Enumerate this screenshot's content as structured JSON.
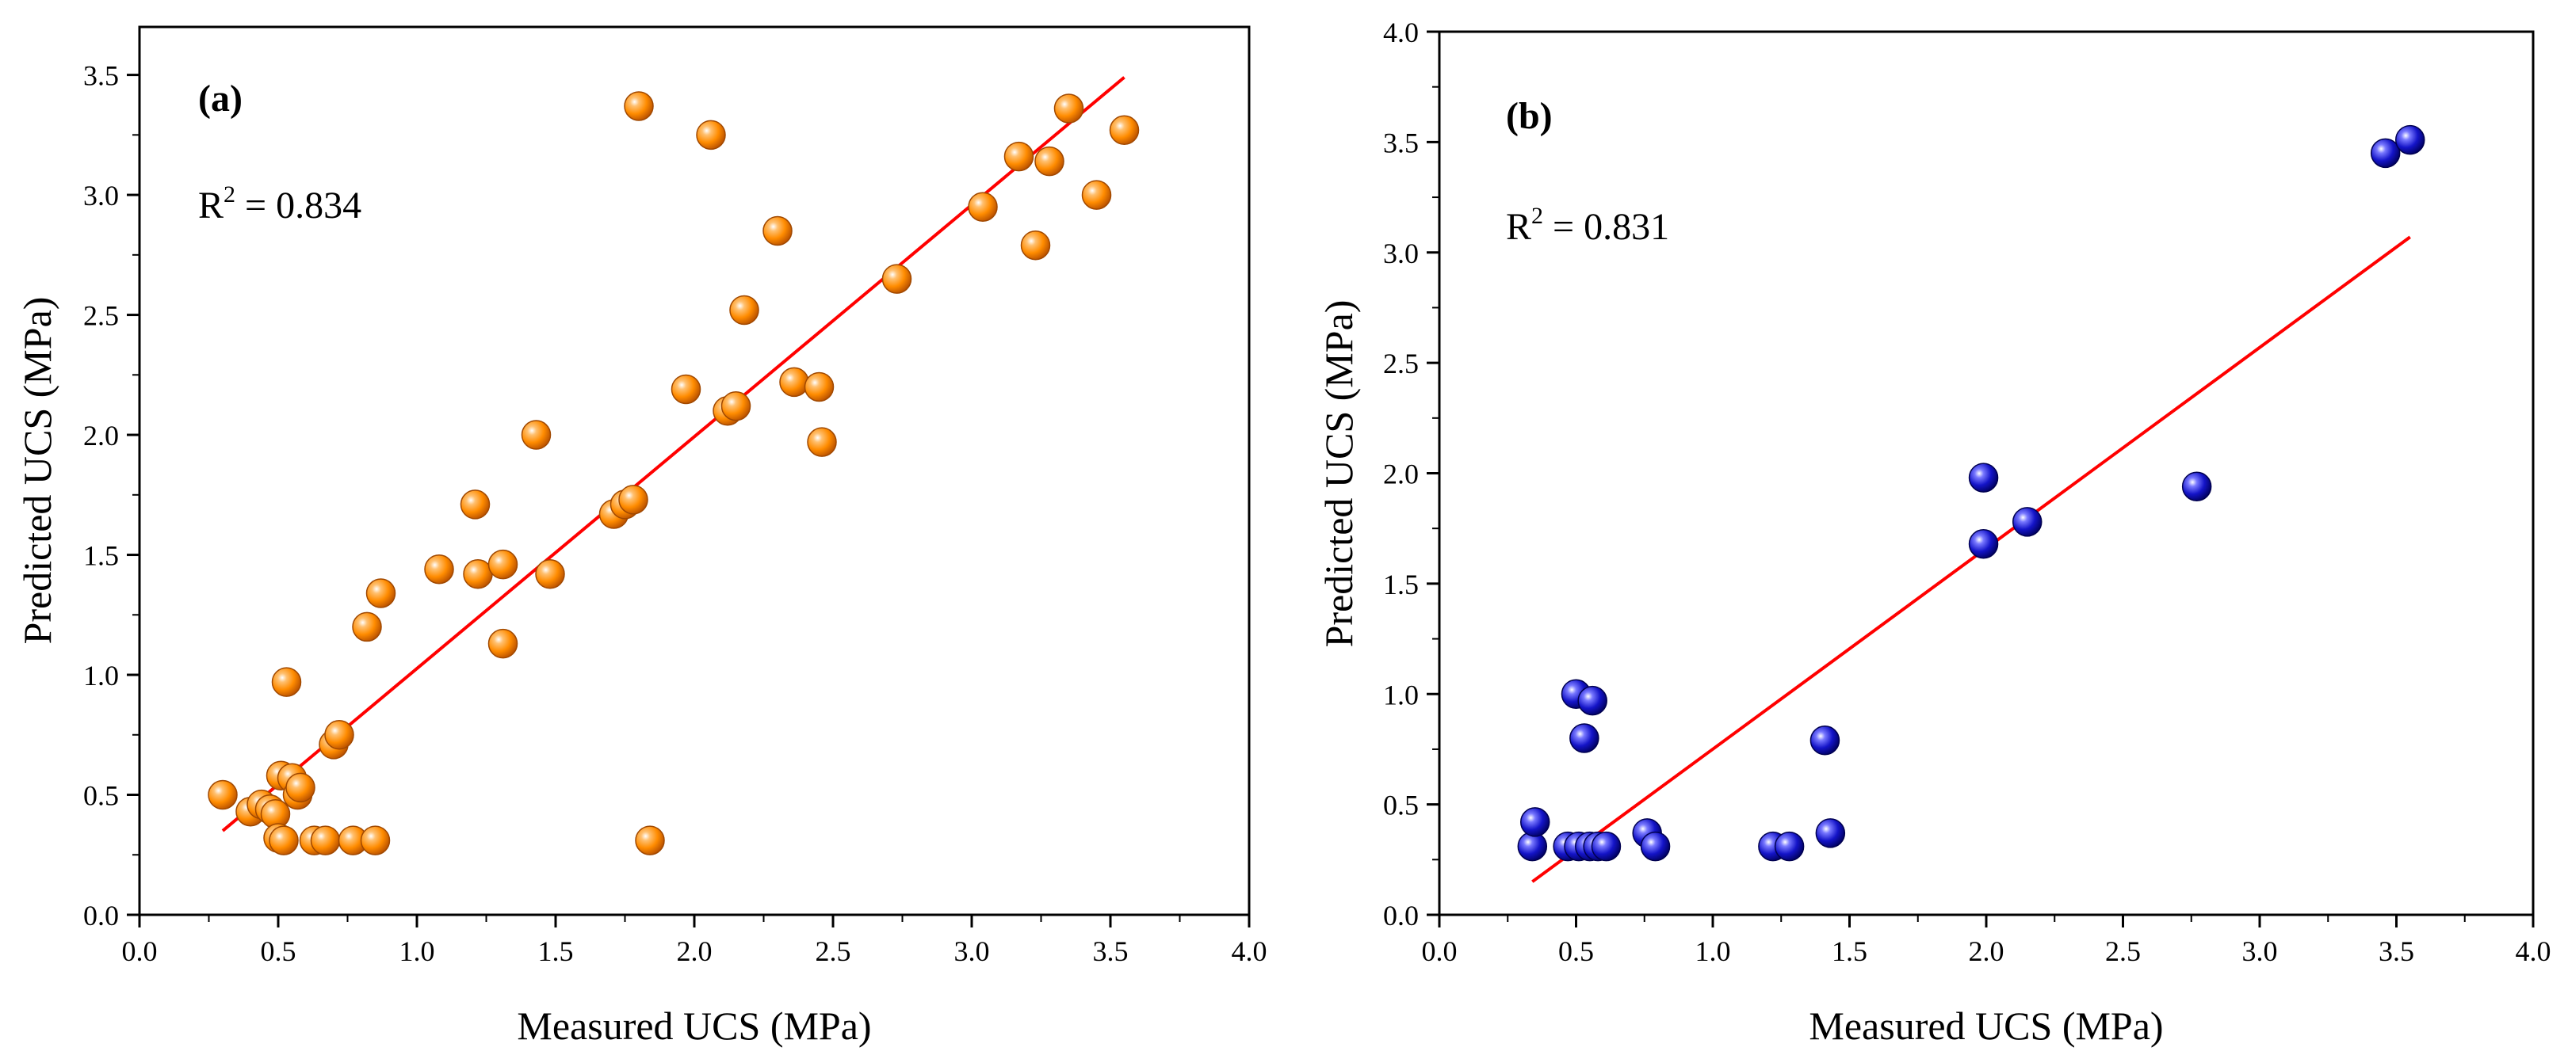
{
  "colors": {
    "orange_fill": "#ff8c00",
    "orange_dark": "#c75a00",
    "blue_fill": "#1414c8",
    "blue_dark": "#000070",
    "fit_line": "#ff0000",
    "axis": "#000000"
  },
  "chart_data": [
    {
      "type": "scatter",
      "panel_label": "(a)",
      "r2_prefix": "R",
      "r2_exp": "2",
      "r2_value": " = 0.834",
      "xlabel": "Measured UCS (MPa)",
      "ylabel": "Predicted UCS (MPa)",
      "xlim": [
        0,
        4.0
      ],
      "ylim": [
        0,
        3.7
      ],
      "xticks": [
        0.0,
        0.5,
        1.0,
        1.5,
        2.0,
        2.5,
        3.0,
        3.5,
        4.0
      ],
      "xtick_labels": [
        "0.0",
        "0.5",
        "1.0",
        "1.5",
        "2.0",
        "2.5",
        "3.0",
        "3.5",
        "4.0"
      ],
      "yticks": [
        0.0,
        0.5,
        1.0,
        1.5,
        2.0,
        2.5,
        3.0,
        3.5
      ],
      "ytick_labels": [
        "0.0",
        "0.5",
        "1.0",
        "1.5",
        "2.0",
        "2.5",
        "3.0",
        "3.5"
      ],
      "marker_color": "#ff8c00",
      "fit_line": {
        "x": [
          0.3,
          3.55
        ],
        "y": [
          0.35,
          3.49
        ]
      },
      "points": [
        [
          0.3,
          0.5
        ],
        [
          0.4,
          0.43
        ],
        [
          0.44,
          0.46
        ],
        [
          0.47,
          0.44
        ],
        [
          0.49,
          0.42
        ],
        [
          0.5,
          0.32
        ],
        [
          0.52,
          0.31
        ],
        [
          0.51,
          0.58
        ],
        [
          0.55,
          0.57
        ],
        [
          0.57,
          0.5
        ],
        [
          0.58,
          0.53
        ],
        [
          0.53,
          0.97
        ],
        [
          0.63,
          0.31
        ],
        [
          0.67,
          0.31
        ],
        [
          0.7,
          0.71
        ],
        [
          0.72,
          0.75
        ],
        [
          0.77,
          0.31
        ],
        [
          0.82,
          1.2
        ],
        [
          0.85,
          0.31
        ],
        [
          0.87,
          1.34
        ],
        [
          1.08,
          1.44
        ],
        [
          1.21,
          1.71
        ],
        [
          1.22,
          1.42
        ],
        [
          1.31,
          1.46
        ],
        [
          1.31,
          1.13
        ],
        [
          1.43,
          2.0
        ],
        [
          1.48,
          1.42
        ],
        [
          1.71,
          1.67
        ],
        [
          1.75,
          1.71
        ],
        [
          1.78,
          1.73
        ],
        [
          1.8,
          3.37
        ],
        [
          1.84,
          0.31
        ],
        [
          1.97,
          2.19
        ],
        [
          2.06,
          3.25
        ],
        [
          2.12,
          2.1
        ],
        [
          2.15,
          2.12
        ],
        [
          2.18,
          2.52
        ],
        [
          2.3,
          2.85
        ],
        [
          2.36,
          2.22
        ],
        [
          2.45,
          2.2
        ],
        [
          2.46,
          1.97
        ],
        [
          2.73,
          2.65
        ],
        [
          3.04,
          2.95
        ],
        [
          3.17,
          3.16
        ],
        [
          3.23,
          2.79
        ],
        [
          3.28,
          3.14
        ],
        [
          3.35,
          3.36
        ],
        [
          3.45,
          3.0
        ],
        [
          3.55,
          3.27
        ]
      ]
    },
    {
      "type": "scatter",
      "panel_label": "(b)",
      "r2_prefix": "R",
      "r2_exp": "2",
      "r2_value": " = 0.831",
      "xlabel": "Measured UCS (MPa)",
      "ylabel": "Predicted UCS (MPa)",
      "xlim": [
        0,
        4.0
      ],
      "ylim": [
        0,
        4.0
      ],
      "xticks": [
        0.0,
        0.5,
        1.0,
        1.5,
        2.0,
        2.5,
        3.0,
        3.5,
        4.0
      ],
      "xtick_labels": [
        "0.0",
        "0.5",
        "1.0",
        "1.5",
        "2.0",
        "2.5",
        "3.0",
        "3.5",
        "4.0"
      ],
      "yticks": [
        0.0,
        0.5,
        1.0,
        1.5,
        2.0,
        2.5,
        3.0,
        3.5,
        4.0
      ],
      "ytick_labels": [
        "0.0",
        "0.5",
        "1.0",
        "1.5",
        "2.0",
        "2.5",
        "3.0",
        "3.5",
        "4.0"
      ],
      "marker_color": "#1414c8",
      "fit_line": {
        "x": [
          0.34,
          3.55
        ],
        "y": [
          0.15,
          3.07
        ]
      },
      "points": [
        [
          0.34,
          0.31
        ],
        [
          0.35,
          0.42
        ],
        [
          0.47,
          0.31
        ],
        [
          0.5,
          1.0
        ],
        [
          0.51,
          0.31
        ],
        [
          0.53,
          0.8
        ],
        [
          0.55,
          0.31
        ],
        [
          0.56,
          0.97
        ],
        [
          0.58,
          0.31
        ],
        [
          0.61,
          0.31
        ],
        [
          0.76,
          0.37
        ],
        [
          0.79,
          0.31
        ],
        [
          1.22,
          0.31
        ],
        [
          1.28,
          0.31
        ],
        [
          1.41,
          0.79
        ],
        [
          1.43,
          0.37
        ],
        [
          1.99,
          1.98
        ],
        [
          1.99,
          1.68
        ],
        [
          2.15,
          1.78
        ],
        [
          2.77,
          1.94
        ],
        [
          3.46,
          3.45
        ],
        [
          3.55,
          3.51
        ]
      ]
    }
  ]
}
